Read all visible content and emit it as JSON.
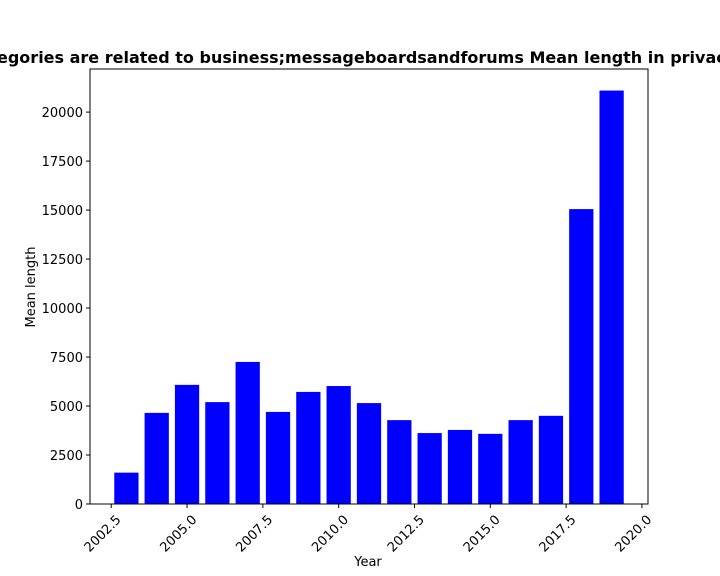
{
  "chart_data": {
    "type": "bar",
    "title": "Categories are related to business;messageboardsandforums Mean length in privacy p",
    "xlabel": "Year",
    "ylabel": "Mean length",
    "x": [
      2003,
      2004,
      2005,
      2006,
      2007,
      2008,
      2009,
      2010,
      2011,
      2012,
      2013,
      2014,
      2015,
      2016,
      2017,
      2018,
      2019
    ],
    "values": [
      1600,
      4650,
      6080,
      5200,
      7250,
      4700,
      5720,
      6020,
      5150,
      4280,
      3620,
      3780,
      3580,
      4280,
      4500,
      15050,
      21100
    ],
    "bar_color": "#0000ff",
    "xlim": [
      2001.8,
      2020.2
    ],
    "ylim": [
      0,
      22200
    ],
    "xticks": [
      2002.5,
      2005.0,
      2007.5,
      2010.0,
      2012.5,
      2015.0,
      2017.5,
      2020.0
    ],
    "xtick_labels": [
      "2002.5",
      "2005.0",
      "2007.5",
      "2010.0",
      "2012.5",
      "2015.0",
      "2017.5",
      "2020.0"
    ],
    "yticks": [
      0,
      2500,
      5000,
      7500,
      10000,
      12500,
      15000,
      17500,
      20000
    ],
    "ytick_labels": [
      "0",
      "2500",
      "5000",
      "7500",
      "10000",
      "12500",
      "15000",
      "17500",
      "20000"
    ],
    "grid": false,
    "legend": "none"
  }
}
